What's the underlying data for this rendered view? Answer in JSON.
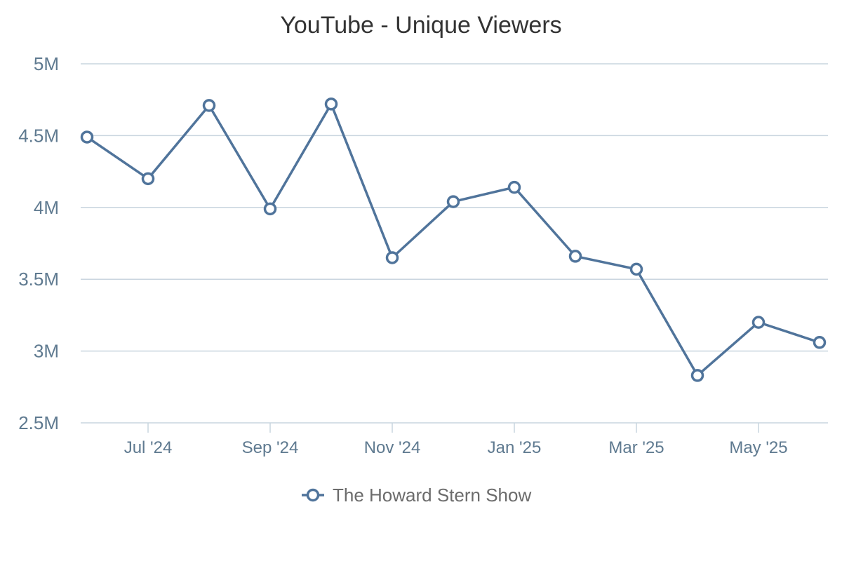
{
  "chart_data": {
    "type": "line",
    "title": "YouTube - Unique Viewers",
    "xlabel": "",
    "ylabel": "",
    "ylim": [
      2500000,
      5000000
    ],
    "y_ticks": [
      {
        "value": 2500000,
        "label": "2.5M"
      },
      {
        "value": 3000000,
        "label": "3M"
      },
      {
        "value": 3500000,
        "label": "3.5M"
      },
      {
        "value": 4000000,
        "label": "4M"
      },
      {
        "value": 4500000,
        "label": "4.5M"
      },
      {
        "value": 5000000,
        "label": "5M"
      }
    ],
    "x": [
      "2024-06",
      "2024-07",
      "2024-08",
      "2024-09",
      "2024-10",
      "2024-11",
      "2024-12",
      "2025-01",
      "2025-02",
      "2025-03",
      "2025-04",
      "2025-05",
      "2025-06"
    ],
    "x_ticks": [
      {
        "value": "2024-07",
        "label": "Jul '24"
      },
      {
        "value": "2024-09",
        "label": "Sep '24"
      },
      {
        "value": "2024-11",
        "label": "Nov '24"
      },
      {
        "value": "2025-01",
        "label": "Jan '25"
      },
      {
        "value": "2025-03",
        "label": "Mar '25"
      },
      {
        "value": "2025-05",
        "label": "May '25"
      }
    ],
    "grid": true,
    "legend_position": "bottom-center",
    "series": [
      {
        "name": "The Howard Stern Show",
        "color": "#50749b",
        "values": [
          4490000,
          4200000,
          4710000,
          3990000,
          4720000,
          3650000,
          4040000,
          4140000,
          3660000,
          3570000,
          2830000,
          3200000,
          3060000
        ]
      }
    ]
  }
}
